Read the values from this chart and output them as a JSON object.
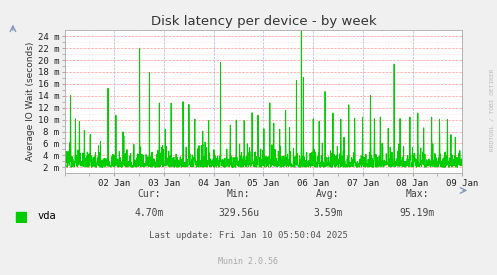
{
  "title": "Disk latency per device - by week",
  "ylabel": "Average IO Wait (seconds)",
  "yticks_labels": [
    "2 m",
    "4 m",
    "6 m",
    "8 m",
    "10 m",
    "12 m",
    "14 m",
    "16 m",
    "18 m",
    "20 m",
    "22 m",
    "24 m"
  ],
  "yticks_values": [
    0.002,
    0.004,
    0.006,
    0.008,
    0.01,
    0.012,
    0.014,
    0.016,
    0.018,
    0.02,
    0.022,
    0.024
  ],
  "ylim": [
    0.001,
    0.025
  ],
  "xlim": [
    0,
    8
  ],
  "xtick_labels": [
    "02 Jan",
    "03 Jan",
    "04 Jan",
    "05 Jan",
    "06 Jan",
    "07 Jan",
    "08 Jan",
    "09 Jan"
  ],
  "legend_label": "vda",
  "legend_color": "#00cc00",
  "line_color": "#00cc00",
  "bg_color": "#f0f0f0",
  "plot_bg_color": "#ffffff",
  "grid_major_color": "#ff9999",
  "grid_minor_color": "#ccddff",
  "title_color": "#333333",
  "axis_color": "#aaaaaa",
  "stats_cur": "4.70m",
  "stats_min": "329.56u",
  "stats_avg": "3.59m",
  "stats_max": "95.19m",
  "last_update": "Last update: Fri Jan 10 05:50:04 2025",
  "munin_version": "Munin 2.0.56",
  "rrdtool_label": "RRDTOOL / TOBI OETIKER",
  "figsize": [
    4.97,
    2.75
  ],
  "dpi": 100
}
